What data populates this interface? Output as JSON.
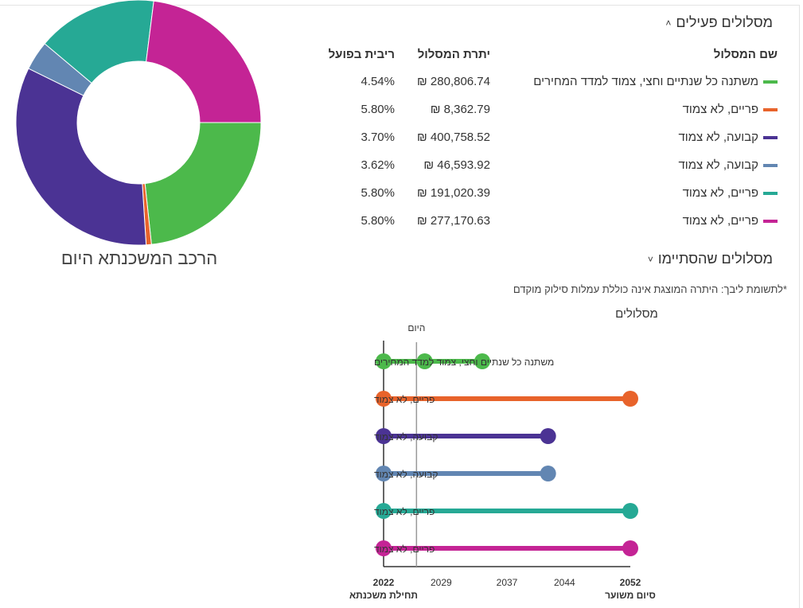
{
  "active_section": {
    "title": "מסלולים פעילים",
    "chevron": "˄"
  },
  "ended_section": {
    "title": "מסלולים שהסתיימו",
    "chevron": "˅"
  },
  "table": {
    "headers": {
      "name": "שם המסלול",
      "balance": "יתרת המסלול",
      "rate": "ריבית בפועל"
    },
    "rows": [
      {
        "name": "משתנה כל שנתיים וחצי, צמוד למדד המחירים",
        "balance": "₪ 280,806.74",
        "rate": "4.54%",
        "color": "#4cb94b"
      },
      {
        "name": "פריים, לא צמוד",
        "balance": "₪ 8,362.79",
        "rate": "5.80%",
        "color": "#e8632b"
      },
      {
        "name": "קבועה, לא צמוד",
        "balance": "₪ 400,758.52",
        "rate": "3.70%",
        "color": "#4b3394"
      },
      {
        "name": "קבועה, לא צמוד",
        "balance": "₪ 46,593.92",
        "rate": "3.62%",
        "color": "#6286b2"
      },
      {
        "name": "פריים, לא צמוד",
        "balance": "₪ 191,020.39",
        "rate": "5.80%",
        "color": "#26a995"
      },
      {
        "name": "פריים, לא צמוד",
        "balance": "₪ 277,170.63",
        "rate": "5.80%",
        "color": "#c42495"
      }
    ]
  },
  "note": "*לתשומת ליבך: היתרה המוצגת אינה כוללת עמלות סילוק מוקדם",
  "chart_data": [
    {
      "type": "pie",
      "title": "הרכב המשכנתא היום",
      "labels": [
        "משתנה כל שנתיים וחצי, צמוד למדד המחירים",
        "פריים, לא צמוד",
        "קבועה, לא צמוד",
        "קבועה, לא צמוד",
        "פריים, לא צמוד",
        "פריים, לא צמוד"
      ],
      "values": [
        280806.74,
        8362.79,
        400758.52,
        46593.92,
        191020.39,
        277170.63
      ],
      "colors": [
        "#4cb94b",
        "#e8632b",
        "#4b3394",
        "#6286b2",
        "#26a995",
        "#c42495"
      ]
    },
    {
      "type": "line",
      "title": "מסלולים",
      "today_label": "היום",
      "today_year": 2026,
      "x_ticks": [
        "2022",
        "2029",
        "2037",
        "2044",
        "2052"
      ],
      "x_start_label": "תחילת משכנתא",
      "x_end_label": "סיום משוער",
      "xlim": [
        2022,
        2052
      ],
      "series": [
        {
          "name": "משתנה כל שנתיים וחצי, צמוד למדד המחירים",
          "color": "#4cb94b",
          "points": [
            2022,
            2027,
            2034
          ]
        },
        {
          "name": "פריים, לא צמוד",
          "color": "#e8632b",
          "points": [
            2022,
            2052
          ]
        },
        {
          "name": "קבועה, לא צמוד",
          "color": "#4b3394",
          "points": [
            2022,
            2042
          ]
        },
        {
          "name": "קבועה, לא צמוד",
          "color": "#6286b2",
          "points": [
            2022,
            2042
          ]
        },
        {
          "name": "פריים, לא צמוד",
          "color": "#26a995",
          "points": [
            2022,
            2052
          ]
        },
        {
          "name": "פריים, לא צמוד",
          "color": "#c42495",
          "points": [
            2022,
            2052
          ]
        }
      ]
    }
  ]
}
